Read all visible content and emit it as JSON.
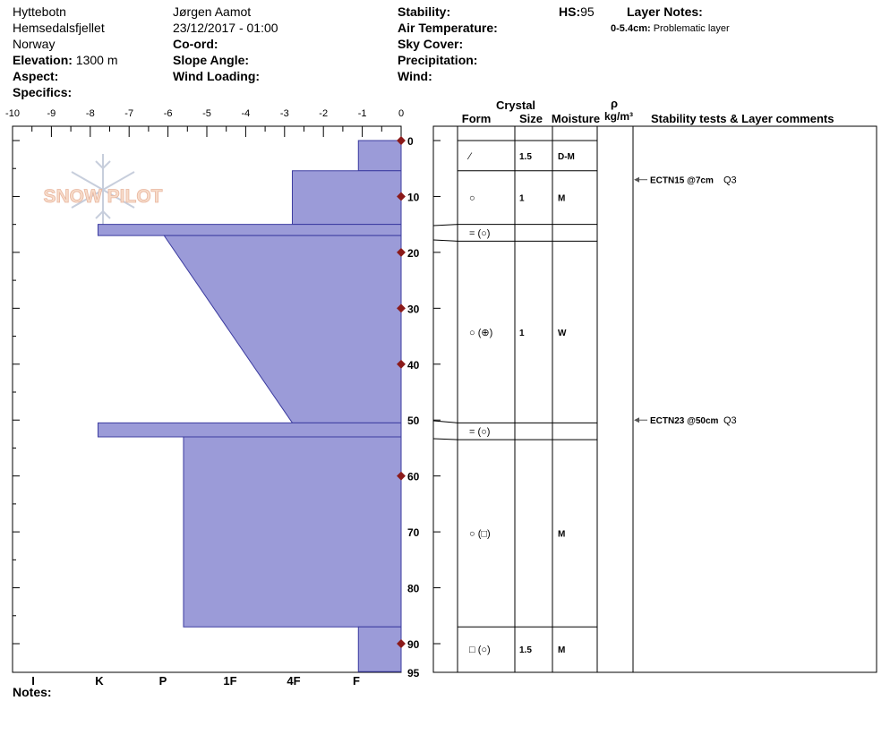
{
  "header": {
    "site": "Hyttebotn",
    "region": "Hemsedalsfjellet",
    "country": "Norway",
    "elevation_label": "Elevation:",
    "elevation_value": "1300 m",
    "aspect_label": "Aspect:",
    "specifics_label": "Specifics:",
    "observer": "Jørgen Aamot",
    "datetime": "23/12/2017 - 01:00",
    "coord_label": "Co-ord:",
    "slope_label": "Slope Angle:",
    "wind_loading_label": "Wind Loading:",
    "stability_label": "Stability:",
    "air_temp_label": "Air Temperature:",
    "sky_cover_label": "Sky Cover:",
    "precip_label": "Precipitation:",
    "wind_label": "Wind:",
    "hs_label": "HS:",
    "hs_value": "95",
    "layer_notes_label": "Layer Notes:",
    "layer_note_range": "0-5.4cm:",
    "layer_note_text": "Problematic layer"
  },
  "logo_text": "SNOW PILOT",
  "columns": {
    "crystal": "Crystal",
    "form": "Form",
    "size": "Size",
    "moisture": "Moisture",
    "rho": "ρ",
    "density_unit": "kg/m³",
    "stability": "Stability tests & Layer comments"
  },
  "notes_label": "Notes:",
  "colors": {
    "profile_fill": "#9b9bd8",
    "profile_stroke": "#3c3ca0",
    "marker": "#8b1a1a"
  },
  "chart_data": {
    "type": "area",
    "xlabel": "",
    "ylabel": "",
    "x_ticks": [
      "-10",
      "-9",
      "-8",
      "-7",
      "-6",
      "-5",
      "-4",
      "-3",
      "-2",
      "-1",
      "0"
    ],
    "temperature_xlim": [
      -10,
      0
    ],
    "hardness_ticks": [
      "I",
      "K",
      "P",
      "1F",
      "4F",
      "F"
    ],
    "depth_ticks": [
      "0",
      "10",
      "20",
      "30",
      "40",
      "50",
      "60",
      "70",
      "80",
      "90",
      "95"
    ],
    "ylim": [
      0,
      95
    ],
    "temperature_points": [
      {
        "depth": 0,
        "temp": 0
      },
      {
        "depth": 10,
        "temp": 0
      },
      {
        "depth": 20,
        "temp": 0
      },
      {
        "depth": 30,
        "temp": 0
      },
      {
        "depth": 40,
        "temp": 0
      },
      {
        "depth": 60,
        "temp": 0
      },
      {
        "depth": 90,
        "temp": 0
      }
    ],
    "hardness_profile": [
      {
        "top": 0,
        "bottom": 5.4,
        "hardness": 1.1
      },
      {
        "top": 5.4,
        "bottom": 15,
        "hardness": 2.8
      },
      {
        "top": 15,
        "bottom": 17,
        "hardness": 7.8
      },
      {
        "top": 17,
        "bottom": 50.5,
        "hardness_top": 6.1,
        "hardness_bottom": 2.8
      },
      {
        "top": 50.5,
        "bottom": 53,
        "hardness": 7.8
      },
      {
        "top": 53,
        "bottom": 87,
        "hardness": 5.6
      },
      {
        "top": 87,
        "bottom": 95,
        "hardness": 1.1
      }
    ],
    "layers": [
      {
        "top": 0,
        "bottom": 5.4,
        "form": "⁄",
        "size": "1.5",
        "moisture": "D-M"
      },
      {
        "top": 5.4,
        "bottom": 15,
        "form": "○",
        "size": "1",
        "moisture": "M"
      },
      {
        "top": 15,
        "bottom": 18,
        "form": "= (○)",
        "size": "",
        "moisture": ""
      },
      {
        "top": 18,
        "bottom": 50.5,
        "form": "○ (⊕)",
        "size": "1",
        "moisture": "W"
      },
      {
        "top": 50.5,
        "bottom": 53.5,
        "form": "= (○)",
        "size": "",
        "moisture": ""
      },
      {
        "top": 53.5,
        "bottom": 87,
        "form": "○ (□)",
        "size": "",
        "moisture": "M"
      },
      {
        "top": 87,
        "bottom": 95,
        "form": "□ (○)",
        "size": "1.5",
        "moisture": "M"
      }
    ],
    "stability_tests": [
      {
        "depth": 7,
        "label": "ECTN15 @7cm",
        "quality": "Q3"
      },
      {
        "depth": 50,
        "label": "ECTN23 @50cm",
        "quality": "Q3"
      }
    ]
  }
}
